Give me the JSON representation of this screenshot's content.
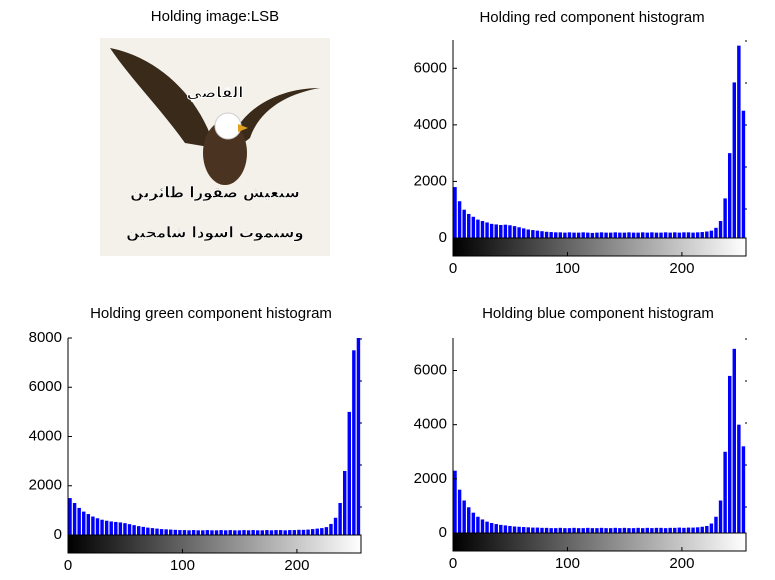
{
  "chart_data": [
    {
      "type": "image",
      "title": "Holding image:LSB",
      "texts": [
        "القاضي",
        "سنعيش صقورا طائرين",
        "وسنموت اسودا شامخين"
      ]
    },
    {
      "type": "histogram",
      "title": "Holding red component histogram",
      "color": "#0000ff",
      "bins": [
        0,
        4,
        8,
        12,
        16,
        20,
        24,
        28,
        32,
        36,
        40,
        44,
        48,
        52,
        56,
        60,
        64,
        68,
        72,
        76,
        80,
        84,
        88,
        92,
        96,
        100,
        104,
        108,
        112,
        116,
        120,
        124,
        128,
        132,
        136,
        140,
        144,
        148,
        152,
        156,
        160,
        164,
        168,
        172,
        176,
        180,
        184,
        188,
        192,
        196,
        200,
        204,
        208,
        212,
        216,
        220,
        224,
        228,
        232,
        236,
        240,
        244,
        248,
        252,
        256
      ],
      "values": [
        1800,
        1300,
        1000,
        850,
        750,
        650,
        600,
        550,
        500,
        480,
        460,
        470,
        450,
        420,
        380,
        340,
        300,
        280,
        260,
        240,
        220,
        210,
        200,
        200,
        190,
        200,
        190,
        190,
        200,
        190,
        180,
        190,
        200,
        190,
        190,
        200,
        190,
        190,
        200,
        190,
        190,
        200,
        190,
        200,
        190,
        190,
        200,
        190,
        200,
        190,
        200,
        200,
        190,
        200,
        210,
        230,
        260,
        360,
        600,
        1400,
        3000,
        5500,
        6800,
        4500
      ],
      "xlim": [
        0,
        256
      ],
      "xticks": [
        0,
        100,
        200
      ],
      "ylim": [
        0,
        7000
      ],
      "yticks": [
        0,
        2000,
        4000,
        6000
      ]
    },
    {
      "type": "histogram",
      "title": "Holding green component histogram",
      "color": "#0000ff",
      "bins": [
        0,
        4,
        8,
        12,
        16,
        20,
        24,
        28,
        32,
        36,
        40,
        44,
        48,
        52,
        56,
        60,
        64,
        68,
        72,
        76,
        80,
        84,
        88,
        92,
        96,
        100,
        104,
        108,
        112,
        116,
        120,
        124,
        128,
        132,
        136,
        140,
        144,
        148,
        152,
        156,
        160,
        164,
        168,
        172,
        176,
        180,
        184,
        188,
        192,
        196,
        200,
        204,
        208,
        212,
        216,
        220,
        224,
        228,
        232,
        236,
        240,
        244,
        248,
        252,
        256
      ],
      "values": [
        1500,
        1300,
        1100,
        950,
        850,
        750,
        680,
        620,
        580,
        550,
        530,
        510,
        480,
        440,
        400,
        360,
        330,
        300,
        280,
        260,
        240,
        230,
        220,
        210,
        200,
        200,
        190,
        200,
        190,
        190,
        200,
        190,
        190,
        200,
        190,
        200,
        190,
        190,
        200,
        190,
        200,
        190,
        190,
        200,
        190,
        200,
        200,
        190,
        200,
        200,
        210,
        210,
        220,
        240,
        260,
        280,
        320,
        450,
        700,
        1300,
        2600,
        5000,
        7500,
        8000
      ],
      "xlim": [
        0,
        256
      ],
      "xticks": [
        0,
        100,
        200
      ],
      "ylim": [
        0,
        8000
      ],
      "yticks": [
        0,
        2000,
        4000,
        6000,
        8000
      ]
    },
    {
      "type": "histogram",
      "title": "Holding blue component histogram",
      "color": "#0000ff",
      "bins": [
        0,
        4,
        8,
        12,
        16,
        20,
        24,
        28,
        32,
        36,
        40,
        44,
        48,
        52,
        56,
        60,
        64,
        68,
        72,
        76,
        80,
        84,
        88,
        92,
        96,
        100,
        104,
        108,
        112,
        116,
        120,
        124,
        128,
        132,
        136,
        140,
        144,
        148,
        152,
        156,
        160,
        164,
        168,
        172,
        176,
        180,
        184,
        188,
        192,
        196,
        200,
        204,
        208,
        212,
        216,
        220,
        224,
        228,
        232,
        236,
        240,
        244,
        248,
        252,
        256
      ],
      "values": [
        2300,
        1600,
        1200,
        950,
        750,
        600,
        500,
        420,
        370,
        330,
        300,
        280,
        260,
        240,
        230,
        220,
        210,
        200,
        200,
        190,
        190,
        180,
        180,
        190,
        180,
        180,
        190,
        180,
        180,
        190,
        180,
        180,
        190,
        180,
        180,
        190,
        180,
        190,
        180,
        180,
        190,
        180,
        190,
        180,
        190,
        190,
        180,
        190,
        190,
        200,
        190,
        200,
        200,
        210,
        230,
        260,
        350,
        600,
        1200,
        3000,
        5800,
        6800,
        4000,
        3200
      ],
      "xlim": [
        0,
        256
      ],
      "xticks": [
        0,
        100,
        200
      ],
      "ylim": [
        0,
        7200
      ],
      "yticks": [
        0,
        2000,
        4000,
        6000
      ]
    }
  ]
}
